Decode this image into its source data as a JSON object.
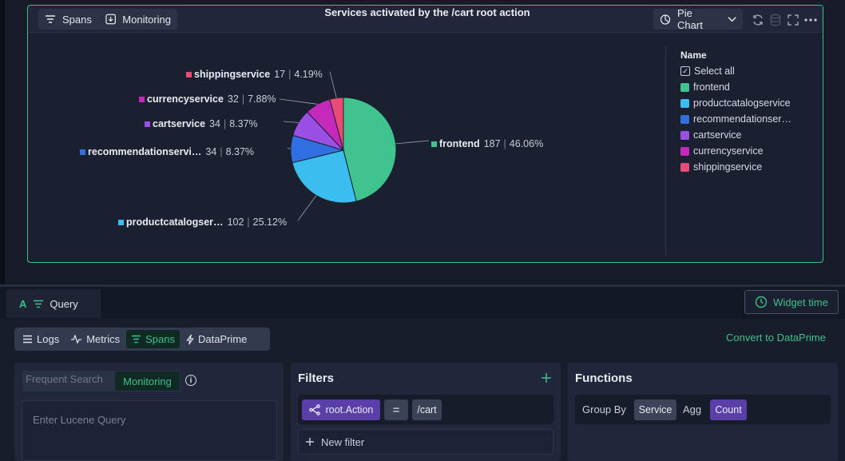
{
  "widget": {
    "spans_tab": "Spans",
    "monitoring_tab": "Monitoring",
    "title": "Services activated by the /cart root action",
    "chart_type_label": "Pie Chart"
  },
  "legend": {
    "title": "Name",
    "select_all": "Select all",
    "items": [
      {
        "label": "frontend",
        "color": "#3ec48c"
      },
      {
        "label": "productcatalogservice",
        "color": "#3bbdf0"
      },
      {
        "label": "recommendationser…",
        "color": "#2f6fe0"
      },
      {
        "label": "cartservice",
        "color": "#9b4fe3"
      },
      {
        "label": "currencyservice",
        "color": "#c429bb"
      },
      {
        "label": "shippingservice",
        "color": "#ea4b74"
      }
    ]
  },
  "chart_data": {
    "type": "pie",
    "title": "Services activated by the /cart root action",
    "slices": [
      {
        "name": "frontend",
        "label": "frontend",
        "value": 187,
        "percent": "46.06%",
        "color": "#3ec48c"
      },
      {
        "name": "productcatalogservice",
        "label": "productcatalogser…",
        "value": 102,
        "percent": "25.12%",
        "color": "#3bbdf0"
      },
      {
        "name": "recommendationservice",
        "label": "recommendationservi…",
        "value": 34,
        "percent": "8.37%",
        "color": "#2f6fe0"
      },
      {
        "name": "cartservice",
        "label": "cartservice",
        "value": 34,
        "percent": "8.37%",
        "color": "#9b4fe3"
      },
      {
        "name": "currencyservice",
        "label": "currencyservice",
        "value": 32,
        "percent": "7.88%",
        "color": "#c429bb"
      },
      {
        "name": "shippingservice",
        "label": "shippingservice",
        "value": 17,
        "percent": "4.19%",
        "color": "#ea4b74"
      }
    ]
  },
  "query": {
    "query_letter": "A",
    "tab_label": "Query",
    "widget_time": "Widget time",
    "sources": [
      "Logs",
      "Metrics",
      "Spans",
      "DataPrime"
    ],
    "convert_link": "Convert to DataPrime",
    "search_tabs": {
      "frequent": "Frequent Search",
      "monitoring": "Monitoring"
    },
    "lucene_placeholder": "Enter Lucene Query"
  },
  "filters": {
    "title": "Filters",
    "filter": {
      "field": "root.Action",
      "operator": "=",
      "value": "/cart"
    },
    "new_filter": "New filter"
  },
  "functions": {
    "title": "Functions",
    "group_by_label": "Group By",
    "group_by_value": "Service",
    "agg_label": "Agg",
    "agg_value": "Count"
  }
}
